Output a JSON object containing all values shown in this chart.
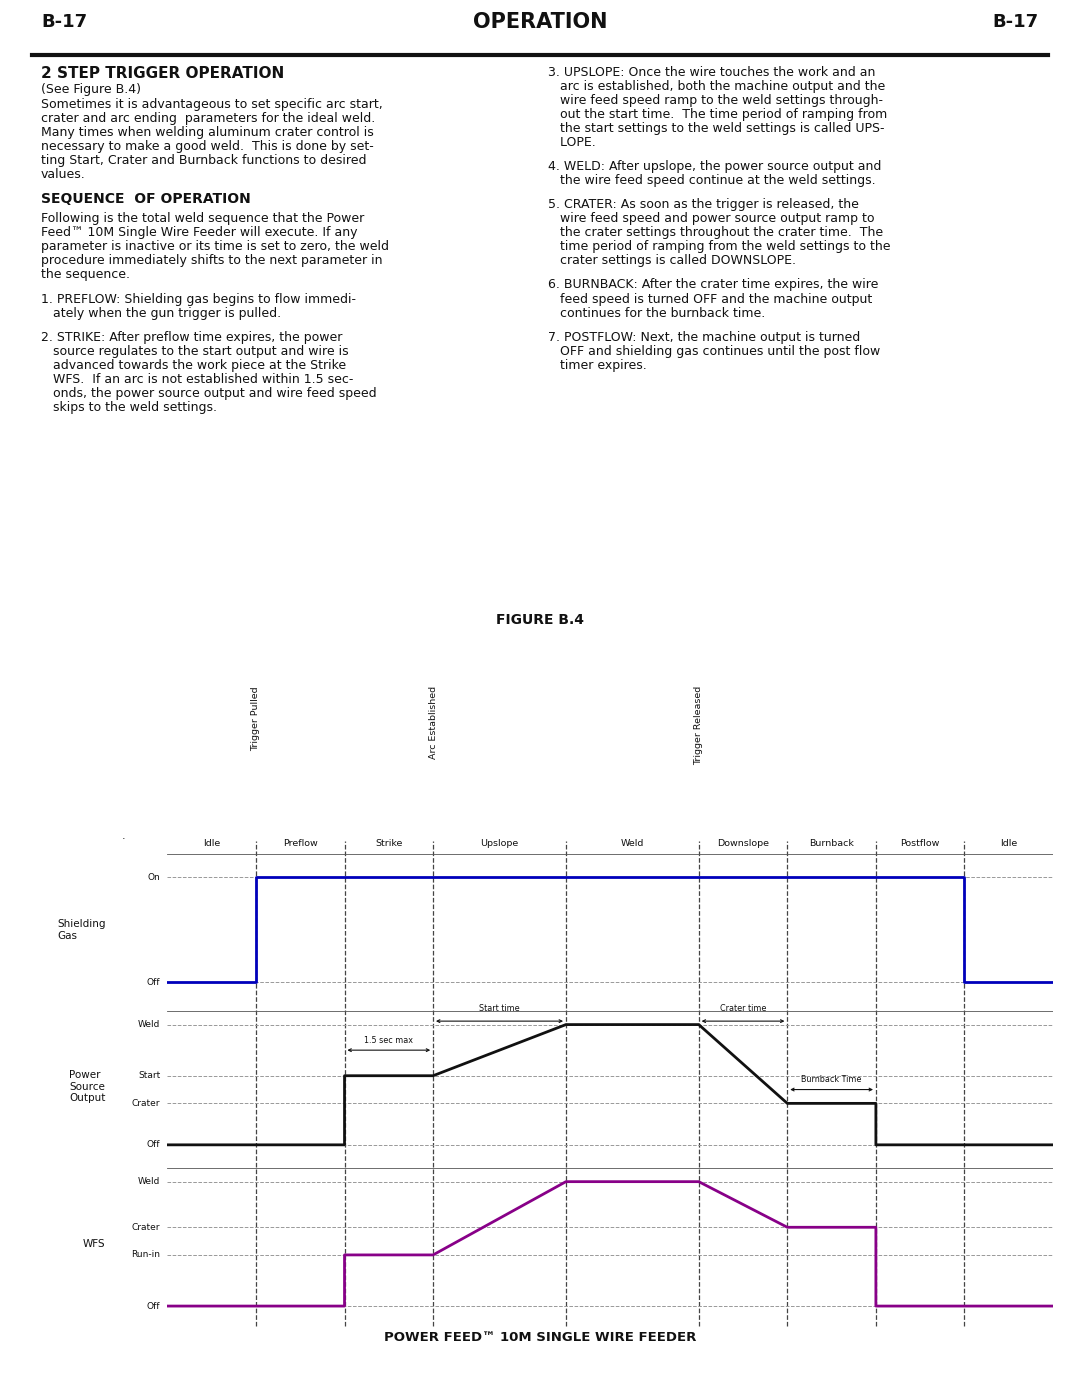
{
  "title": "OPERATION",
  "page_num": "B-17",
  "fig_title": "FIGURE B.4",
  "footer": "POWER FEED™ 10M SINGLE WIRE FEEDER",
  "shielding_gas_color": "#0000BB",
  "wfs_color": "#880088",
  "power_color": "#111111",
  "bg_color": "#ffffff",
  "phases": [
    "Idle",
    "Preflow",
    "Strike",
    "Upslope",
    "Weld",
    "Downslope",
    "Burnback",
    "Postflow",
    "Idle"
  ],
  "phase_bounds": [
    0,
    1,
    2,
    3,
    4.5,
    6,
    7,
    8,
    9,
    10
  ],
  "vert_events": [
    {
      "label": "Trigger Pulled",
      "bound_idx": 1
    },
    {
      "label": "Arc Established",
      "bound_idx": 3
    },
    {
      "label": "Trigger Released",
      "bound_idx": 5
    }
  ]
}
